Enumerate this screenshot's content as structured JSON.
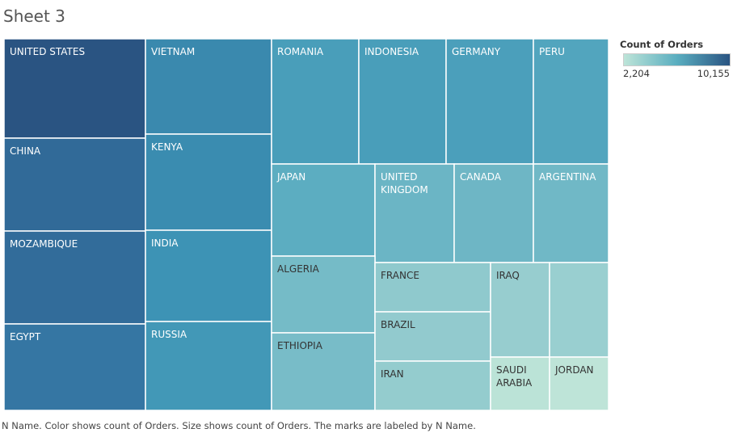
{
  "title": "Sheet 3",
  "caption": "N Name.  Color shows count of Orders.  Size shows count of Orders.  The marks are labeled by N Name.",
  "legend": {
    "title": "Count of Orders",
    "min_label": "2,204",
    "max_label": "10,155",
    "color_low": "#bde4d8",
    "color_high": "#2a5482"
  },
  "chart_data": {
    "type": "treemap",
    "measure": "Count of Orders",
    "color_range": [
      2204,
      10155
    ],
    "items": [
      {
        "name": "UNITED STATES",
        "value": 10155
      },
      {
        "name": "CHINA",
        "value": 9300
      },
      {
        "name": "MOZAMBIQUE",
        "value": 9200
      },
      {
        "name": "EGYPT",
        "value": 8800
      },
      {
        "name": "VIETNAM",
        "value": 8100
      },
      {
        "name": "KENYA",
        "value": 8000
      },
      {
        "name": "INDIA",
        "value": 7700
      },
      {
        "name": "RUSSIA",
        "value": 7400
      },
      {
        "name": "ROMANIA",
        "value": 7000
      },
      {
        "name": "INDONESIA",
        "value": 7000
      },
      {
        "name": "GERMANY",
        "value": 6900
      },
      {
        "name": "PERU",
        "value": 6500
      },
      {
        "name": "JAPAN",
        "value": 6000
      },
      {
        "name": "UNITED KINGDOM",
        "value": 5400
      },
      {
        "name": "CANADA",
        "value": 5300
      },
      {
        "name": "ARGENTINA",
        "value": 5200
      },
      {
        "name": "ALGERIA",
        "value": 5000
      },
      {
        "name": "ETHIOPIA",
        "value": 4900
      },
      {
        "name": "FRANCE",
        "value": 4000
      },
      {
        "name": "BRAZIL",
        "value": 3900
      },
      {
        "name": "IRAN",
        "value": 3800
      },
      {
        "name": "IRAQ",
        "value": 3700
      },
      {
        "name": "",
        "value": 3600
      },
      {
        "name": "SAUDI ARABIA",
        "value": 2300
      },
      {
        "name": "JORDAN",
        "value": 2204
      }
    ]
  }
}
